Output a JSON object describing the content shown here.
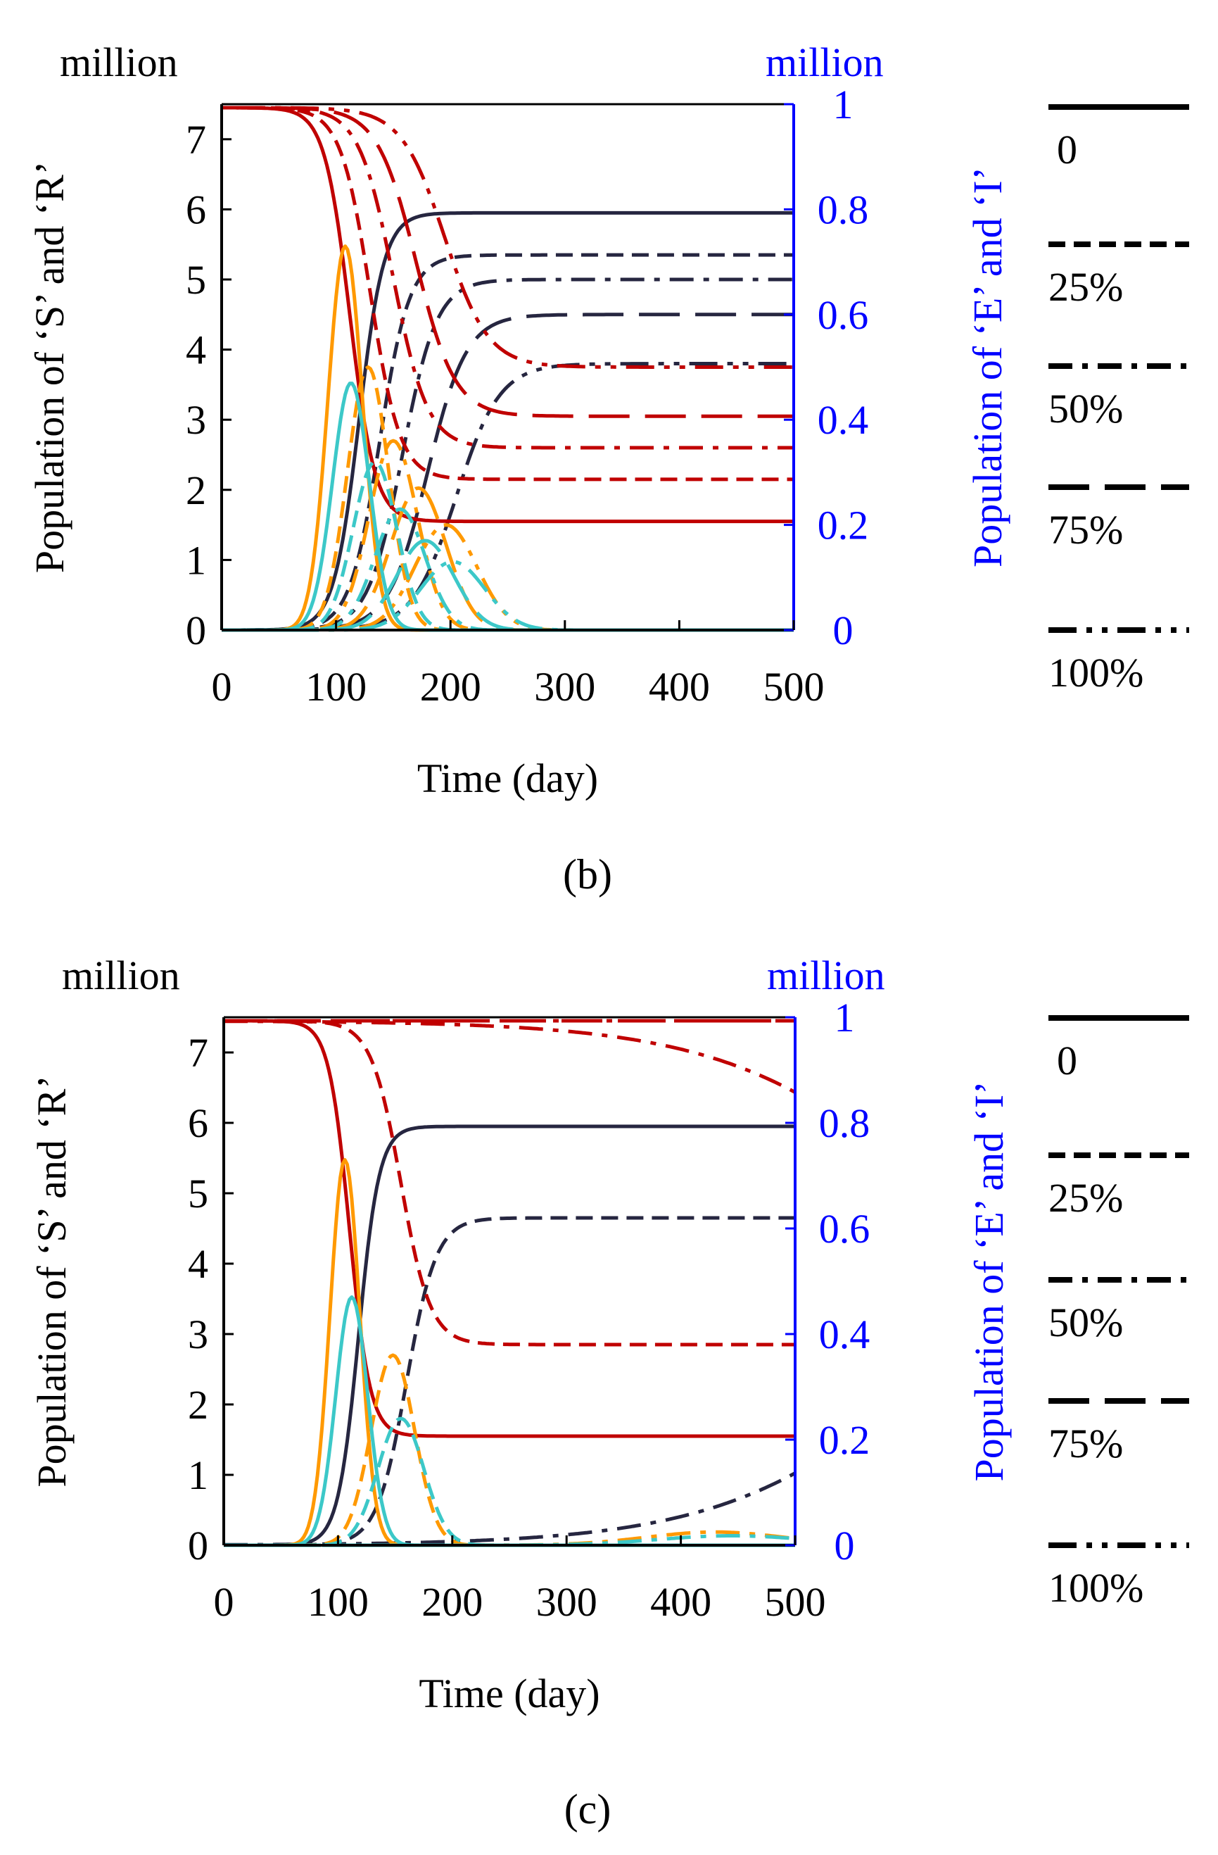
{
  "colors": {
    "S": "#c00000",
    "R": "#262640",
    "E": "#ff9900",
    "I": "#3cc8c8",
    "right_axis": "#0000ff",
    "left_axis": "#000000"
  },
  "legend": {
    "items": [
      {
        "label": "0",
        "style": "solid"
      },
      {
        "label": "25%",
        "style": "dash"
      },
      {
        "label": "50%",
        "style": "dashdot"
      },
      {
        "label": "75%",
        "style": "longdash"
      },
      {
        "label": "100%",
        "style": "dashdotdot"
      }
    ]
  },
  "chart_data": [
    {
      "type": "line",
      "panel_label": "(b)",
      "left_unit": "million",
      "right_unit": "million",
      "xlabel": "Time (day)",
      "ylabel_left": "Population of ‘S’ and ‘R’",
      "ylabel_right": "Population of ‘E’ and ‘I’",
      "xlim": [
        0,
        500
      ],
      "ylim_left": [
        0,
        7.5
      ],
      "ylim_right": [
        0,
        1
      ],
      "xticks": [
        "0",
        "100",
        "200",
        "300",
        "400",
        "500"
      ],
      "yticks_left": [
        "0",
        "1",
        "2",
        "3",
        "4",
        "5",
        "6",
        "7"
      ],
      "yticks_right": [
        "0",
        "0.2",
        "0.4",
        "0.6",
        "0.8",
        "1"
      ],
      "series": [
        {
          "name": "S",
          "scenario": "0",
          "axis": "left",
          "params": {
            "start": 7.45,
            "final": 1.55,
            "mid": 112,
            "w": 11
          }
        },
        {
          "name": "S",
          "scenario": "25%",
          "axis": "left",
          "params": {
            "start": 7.45,
            "final": 2.15,
            "mid": 130,
            "w": 13
          }
        },
        {
          "name": "S",
          "scenario": "50%",
          "axis": "left",
          "params": {
            "start": 7.45,
            "final": 2.6,
            "mid": 150,
            "w": 15
          }
        },
        {
          "name": "S",
          "scenario": "75%",
          "axis": "left",
          "params": {
            "start": 7.45,
            "final": 3.05,
            "mid": 170,
            "w": 17
          }
        },
        {
          "name": "S",
          "scenario": "100%",
          "axis": "left",
          "params": {
            "start": 7.45,
            "final": 3.75,
            "mid": 195,
            "w": 19
          }
        },
        {
          "name": "R",
          "scenario": "0",
          "axis": "left",
          "params": {
            "final": 5.95,
            "mid": 120,
            "w": 11
          }
        },
        {
          "name": "R",
          "scenario": "25%",
          "axis": "left",
          "params": {
            "final": 5.35,
            "mid": 138,
            "w": 13
          }
        },
        {
          "name": "R",
          "scenario": "50%",
          "axis": "left",
          "params": {
            "final": 5.0,
            "mid": 158,
            "w": 15
          }
        },
        {
          "name": "R",
          "scenario": "75%",
          "axis": "left",
          "params": {
            "final": 4.5,
            "mid": 180,
            "w": 17
          }
        },
        {
          "name": "R",
          "scenario": "100%",
          "axis": "left",
          "params": {
            "final": 3.8,
            "mid": 205,
            "w": 19
          }
        },
        {
          "name": "E",
          "scenario": "0",
          "axis": "right",
          "params": {
            "peak": 0.73,
            "center": 108,
            "sigma": 15
          }
        },
        {
          "name": "E",
          "scenario": "25%",
          "axis": "right",
          "params": {
            "peak": 0.5,
            "center": 128,
            "sigma": 18
          }
        },
        {
          "name": "E",
          "scenario": "50%",
          "axis": "right",
          "params": {
            "peak": 0.36,
            "center": 150,
            "sigma": 21
          }
        },
        {
          "name": "E",
          "scenario": "75%",
          "axis": "right",
          "params": {
            "peak": 0.27,
            "center": 172,
            "sigma": 24
          }
        },
        {
          "name": "E",
          "scenario": "100%",
          "axis": "right",
          "params": {
            "peak": 0.2,
            "center": 196,
            "sigma": 27
          }
        },
        {
          "name": "I",
          "scenario": "0",
          "axis": "right",
          "params": {
            "peak": 0.47,
            "center": 113,
            "sigma": 16
          }
        },
        {
          "name": "I",
          "scenario": "25%",
          "axis": "right",
          "params": {
            "peak": 0.32,
            "center": 134,
            "sigma": 19
          }
        },
        {
          "name": "I",
          "scenario": "50%",
          "axis": "right",
          "params": {
            "peak": 0.23,
            "center": 156,
            "sigma": 22
          }
        },
        {
          "name": "I",
          "scenario": "75%",
          "axis": "right",
          "params": {
            "peak": 0.17,
            "center": 178,
            "sigma": 25
          }
        },
        {
          "name": "I",
          "scenario": "100%",
          "axis": "right",
          "params": {
            "peak": 0.13,
            "center": 202,
            "sigma": 28
          }
        }
      ]
    },
    {
      "type": "line",
      "panel_label": "(c)",
      "left_unit": "million",
      "right_unit": "million",
      "xlabel": "Time (day)",
      "ylabel_left": "Population of ‘S’ and ‘R’",
      "ylabel_right": "Population of ‘E’ and ‘I’",
      "xlim": [
        0,
        500
      ],
      "ylim_left": [
        0,
        7.5
      ],
      "ylim_right": [
        0,
        1
      ],
      "xticks": [
        "0",
        "100",
        "200",
        "300",
        "400",
        "500"
      ],
      "yticks_left": [
        "0",
        "1",
        "2",
        "3",
        "4",
        "5",
        "6",
        "7"
      ],
      "yticks_right": [
        "0",
        "0.2",
        "0.4",
        "0.6",
        "0.8",
        "1"
      ],
      "series": [
        {
          "name": "S",
          "scenario": "0",
          "axis": "left",
          "params": {
            "start": 7.45,
            "final": 1.55,
            "mid": 110,
            "w": 9
          }
        },
        {
          "name": "S",
          "scenario": "25%",
          "axis": "left",
          "params": {
            "start": 7.45,
            "final": 2.85,
            "mid": 155,
            "w": 13
          }
        },
        {
          "name": "S",
          "scenario": "50%",
          "axis": "left",
          "params": {
            "start": 7.45,
            "final": 2.0,
            "mid": 640,
            "w": 95
          }
        },
        {
          "name": "S",
          "scenario": "75%",
          "axis": "left",
          "params": {
            "start": 7.45,
            "final": 7.45,
            "mid": 300,
            "w": 50
          }
        },
        {
          "name": "S",
          "scenario": "100%",
          "axis": "left",
          "params": {
            "start": 7.45,
            "final": 7.45,
            "mid": 300,
            "w": 50
          }
        },
        {
          "name": "R",
          "scenario": "0",
          "axis": "left",
          "params": {
            "final": 5.95,
            "mid": 118,
            "w": 9
          }
        },
        {
          "name": "R",
          "scenario": "25%",
          "axis": "left",
          "params": {
            "final": 4.65,
            "mid": 160,
            "w": 13
          }
        },
        {
          "name": "R",
          "scenario": "50%",
          "axis": "left",
          "params": {
            "final": 5.5,
            "mid": 640,
            "w": 95
          }
        },
        {
          "name": "R",
          "scenario": "75%",
          "axis": "left",
          "params": {
            "final": 0.0,
            "mid": 300,
            "w": 50
          }
        },
        {
          "name": "R",
          "scenario": "100%",
          "axis": "left",
          "params": {
            "final": 0.0,
            "mid": 300,
            "w": 50
          }
        },
        {
          "name": "E",
          "scenario": "0",
          "axis": "right",
          "params": {
            "peak": 0.73,
            "center": 106,
            "sigma": 13
          }
        },
        {
          "name": "E",
          "scenario": "25%",
          "axis": "right",
          "params": {
            "peak": 0.36,
            "center": 148,
            "sigma": 19
          }
        },
        {
          "name": "E",
          "scenario": "50%",
          "axis": "right",
          "params": {
            "peak": 0.025,
            "center": 430,
            "sigma": 60
          }
        },
        {
          "name": "E",
          "scenario": "75%",
          "axis": "right",
          "params": {
            "peak": 0.0,
            "center": 300,
            "sigma": 50
          }
        },
        {
          "name": "E",
          "scenario": "100%",
          "axis": "right",
          "params": {
            "peak": 0.0,
            "center": 300,
            "sigma": 50
          }
        },
        {
          "name": "I",
          "scenario": "0",
          "axis": "right",
          "params": {
            "peak": 0.47,
            "center": 112,
            "sigma": 14
          }
        },
        {
          "name": "I",
          "scenario": "25%",
          "axis": "right",
          "params": {
            "peak": 0.24,
            "center": 155,
            "sigma": 20
          }
        },
        {
          "name": "I",
          "scenario": "50%",
          "axis": "right",
          "params": {
            "peak": 0.018,
            "center": 445,
            "sigma": 65
          }
        },
        {
          "name": "I",
          "scenario": "75%",
          "axis": "right",
          "params": {
            "peak": 0.0,
            "center": 300,
            "sigma": 50
          }
        },
        {
          "name": "I",
          "scenario": "100%",
          "axis": "right",
          "params": {
            "peak": 0.0,
            "center": 300,
            "sigma": 50
          }
        }
      ]
    }
  ]
}
